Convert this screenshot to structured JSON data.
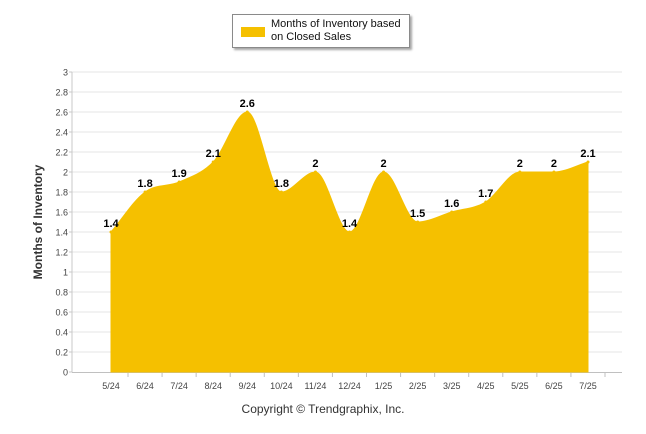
{
  "chart_data": {
    "type": "area",
    "categories": [
      "5/24",
      "6/24",
      "7/24",
      "8/24",
      "9/24",
      "10/24",
      "11/24",
      "12/24",
      "1/25",
      "2/25",
      "3/25",
      "4/25",
      "5/25",
      "6/25",
      "7/25"
    ],
    "series": [
      {
        "name": "Months of Inventory based on Closed Sales",
        "values": [
          1.4,
          1.8,
          1.9,
          2.1,
          2.6,
          1.8,
          2,
          1.4,
          2,
          1.5,
          1.6,
          1.7,
          2,
          2,
          2.1
        ],
        "color": "#f5c000"
      }
    ],
    "data_labels": [
      "1.4",
      "1.8",
      "1.9",
      "2.1",
      "2.6",
      "1.8",
      "2",
      "1.4",
      "2",
      "1.5",
      "1.6",
      "1.7",
      "2",
      "2",
      "2.1"
    ],
    "ylabel": "Months of Inventory",
    "xlabel": "",
    "ylim": [
      0,
      3
    ],
    "yticks": [
      "0",
      "0.2",
      "0.4",
      "0.6",
      "0.8",
      "1",
      "1.2",
      "1.4",
      "1.6",
      "1.8",
      "2",
      "2.2",
      "2.4",
      "2.6",
      "2.8",
      "3"
    ],
    "grid": true,
    "legend_position": "top-center"
  },
  "legend": {
    "label": "Months of Inventory based on Closed Sales",
    "line1": "Months of Inventory based",
    "line2": "on Closed Sales"
  },
  "footer": {
    "copyright": "Copyright © Trendgraphix, Inc."
  }
}
